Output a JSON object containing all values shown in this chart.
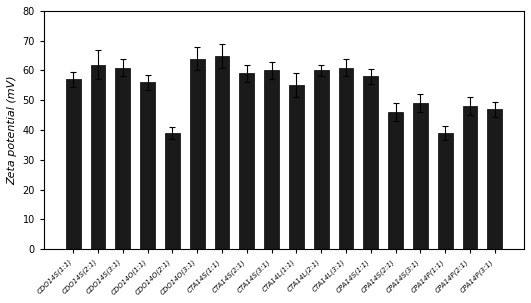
{
  "categories": [
    "CDO14S(1:1)",
    "CDO14S(2:1)",
    "CDO14S(3:1)",
    "CDO14O(1:1)",
    "CDO14O(2:1)",
    "CDO14O(3:1)",
    "CTA14S(1:1)",
    "CTA14S(2:1)",
    "CTA14S(3:1)",
    "CTA14L(1:1)",
    "CTA14L(2:1)",
    "CTA14L(3:1)",
    "CPA14S(1:1)",
    "CPA14S(2:1)",
    "CPA14S(3:1)",
    "CPA14P(1:1)",
    "CPA14P(2:1)",
    "CPA14P(3:1)"
  ],
  "values": [
    57,
    62,
    61,
    56,
    39,
    64,
    65,
    59,
    60,
    55,
    60,
    61,
    58,
    46,
    49,
    39,
    48,
    47
  ],
  "errors": [
    2.5,
    5,
    3,
    2.5,
    2,
    4,
    4,
    3,
    3,
    4,
    2,
    3,
    2.5,
    3,
    3,
    2.5,
    3,
    2.5
  ],
  "bar_color": "#1a1a1a",
  "edge_color": "#000000",
  "ylabel": "Zeta potential (mV)",
  "ylim": [
    0,
    80
  ],
  "yticks": [
    0,
    10,
    20,
    30,
    40,
    50,
    60,
    70,
    80
  ],
  "background_color": "#ffffff",
  "bar_width": 0.6,
  "tick_label_fontsize": 5.0,
  "ylabel_fontsize": 8
}
